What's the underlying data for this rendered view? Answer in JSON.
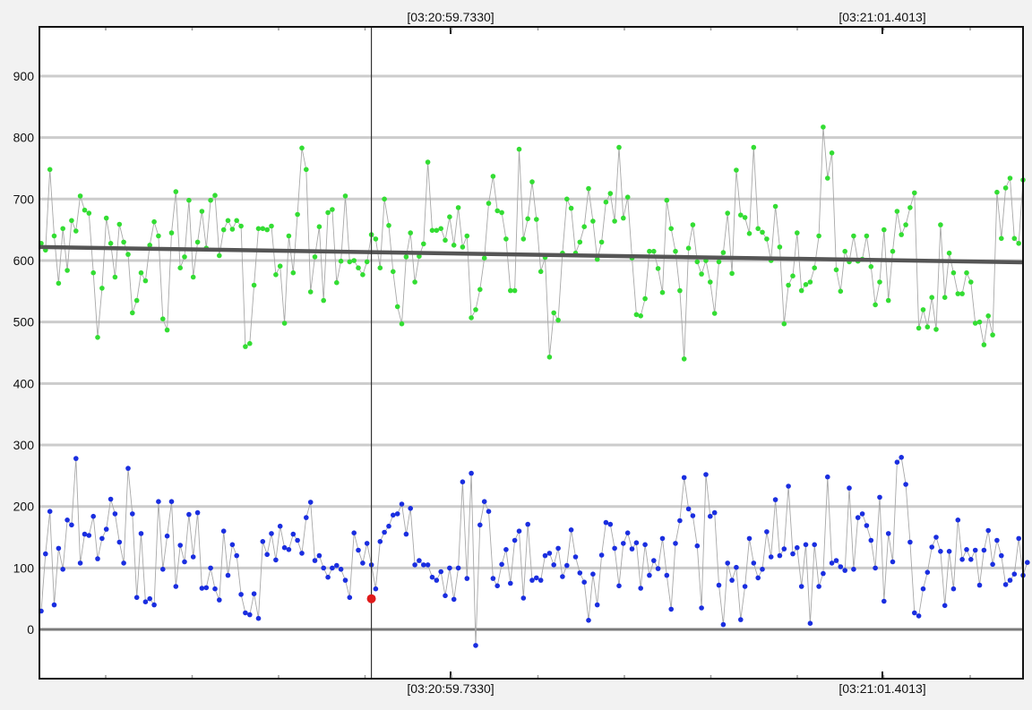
{
  "chart_data": {
    "type": "line",
    "title": "",
    "xlabel": "",
    "ylabel": "",
    "ylim": [
      -80,
      980
    ],
    "y_ticks": [
      0,
      100,
      200,
      300,
      400,
      500,
      600,
      700,
      800,
      900
    ],
    "grid": true,
    "legend": "none",
    "time_labels": [
      "[03:20:59.7330]",
      "[03:21:01.4013]"
    ],
    "cursor": {
      "sample_index": 76,
      "marker_value": 50,
      "marker_color": "#e01b1b"
    },
    "series": [
      {
        "color": "#33dd33",
        "values": [
          628,
          617,
          748,
          640,
          563,
          652,
          584,
          665,
          648,
          705,
          682,
          677,
          580,
          475,
          555,
          669,
          628,
          573,
          659,
          630,
          610,
          515,
          535,
          580,
          567,
          625,
          663,
          640,
          505,
          487,
          645,
          712,
          588,
          606,
          698,
          573,
          630,
          680,
          620,
          698,
          706,
          608,
          650,
          665,
          651,
          665,
          656,
          460,
          465,
          560,
          652,
          652,
          650,
          656,
          577,
          591,
          498,
          640,
          580,
          675,
          783,
          748,
          549,
          606,
          655,
          535,
          678,
          683,
          564,
          599,
          705,
          598,
          600,
          588,
          577,
          598,
          642,
          635,
          588,
          700,
          657,
          582,
          525,
          497,
          606,
          645,
          565,
          607,
          627,
          760,
          649,
          649,
          652,
          633,
          671,
          625,
          686,
          622,
          640,
          507,
          520,
          553,
          604,
          693,
          737,
          681,
          678,
          635,
          551,
          551,
          781,
          635,
          668,
          728,
          667,
          582,
          605,
          443,
          515,
          503,
          612,
          700,
          685,
          612,
          630,
          655,
          717,
          664,
          602,
          630,
          695,
          709,
          664,
          784,
          669,
          703,
          604,
          512,
          510,
          538,
          615,
          615,
          587,
          548,
          698,
          652,
          615,
          551,
          440,
          620,
          658,
          598,
          578,
          600,
          565,
          514,
          598,
          613,
          677,
          579,
          747,
          674,
          670,
          644,
          784,
          652,
          646,
          635,
          600,
          688,
          622,
          497,
          560,
          575,
          645,
          551,
          561,
          565,
          588,
          640,
          817,
          734,
          775,
          585,
          550,
          615,
          598,
          640,
          599,
          602,
          640,
          590,
          528,
          565,
          650,
          535,
          615,
          680,
          642,
          658,
          686,
          710,
          490,
          520,
          492,
          540,
          488,
          658,
          540,
          612,
          580,
          546,
          546,
          580,
          565,
          498,
          500,
          463,
          510,
          479,
          711,
          636,
          718,
          734,
          636,
          628,
          731
        ]
      },
      {
        "color": "#1a2ee0",
        "values": [
          30,
          123,
          192,
          40,
          132,
          98,
          178,
          170,
          278,
          108,
          155,
          153,
          184,
          115,
          148,
          163,
          212,
          188,
          142,
          108,
          262,
          188,
          52,
          156,
          45,
          50,
          40,
          208,
          98,
          152,
          208,
          70,
          137,
          110,
          187,
          118,
          190,
          67,
          68,
          100,
          66,
          48,
          160,
          88,
          138,
          120,
          57,
          27,
          24,
          58,
          18,
          143,
          122,
          156,
          113,
          168,
          133,
          130,
          155,
          145,
          124,
          182,
          207,
          112,
          120,
          100,
          85,
          100,
          104,
          98,
          80,
          52,
          157,
          129,
          108,
          140,
          105,
          66,
          143,
          158,
          168,
          186,
          188,
          204,
          155,
          197,
          105,
          112,
          105,
          105,
          85,
          80,
          94,
          55,
          100,
          49,
          100,
          240,
          83,
          254,
          -26,
          170,
          208,
          192,
          83,
          71,
          106,
          130,
          75,
          145,
          160,
          51,
          171,
          80,
          84,
          80,
          120,
          124,
          105,
          132,
          86,
          104,
          162,
          118,
          92,
          77,
          15,
          90,
          40,
          121,
          174,
          171,
          132,
          71,
          140,
          157,
          131,
          141,
          67,
          138,
          88,
          112,
          99,
          148,
          88,
          33,
          140,
          177,
          247,
          196,
          185,
          136,
          35,
          252,
          184,
          190,
          72,
          8,
          108,
          80,
          101,
          16,
          70,
          148,
          108,
          84,
          98,
          159,
          118,
          211,
          120,
          131,
          233,
          123,
          133,
          70,
          138,
          10,
          138,
          70,
          91,
          248,
          108,
          112,
          102,
          96,
          230,
          98,
          182,
          188,
          169,
          145,
          100,
          215,
          46,
          156,
          110,
          272,
          280,
          236,
          142,
          27,
          22,
          66,
          93,
          134,
          150,
          127,
          39,
          127,
          66,
          178,
          114,
          130,
          114,
          129,
          72,
          129,
          161,
          106,
          145,
          120,
          73,
          80,
          90,
          148,
          88,
          109
        ]
      },
      {
        "color": "#555555",
        "kind": "trend",
        "values": [
          622,
          597
        ]
      }
    ]
  }
}
